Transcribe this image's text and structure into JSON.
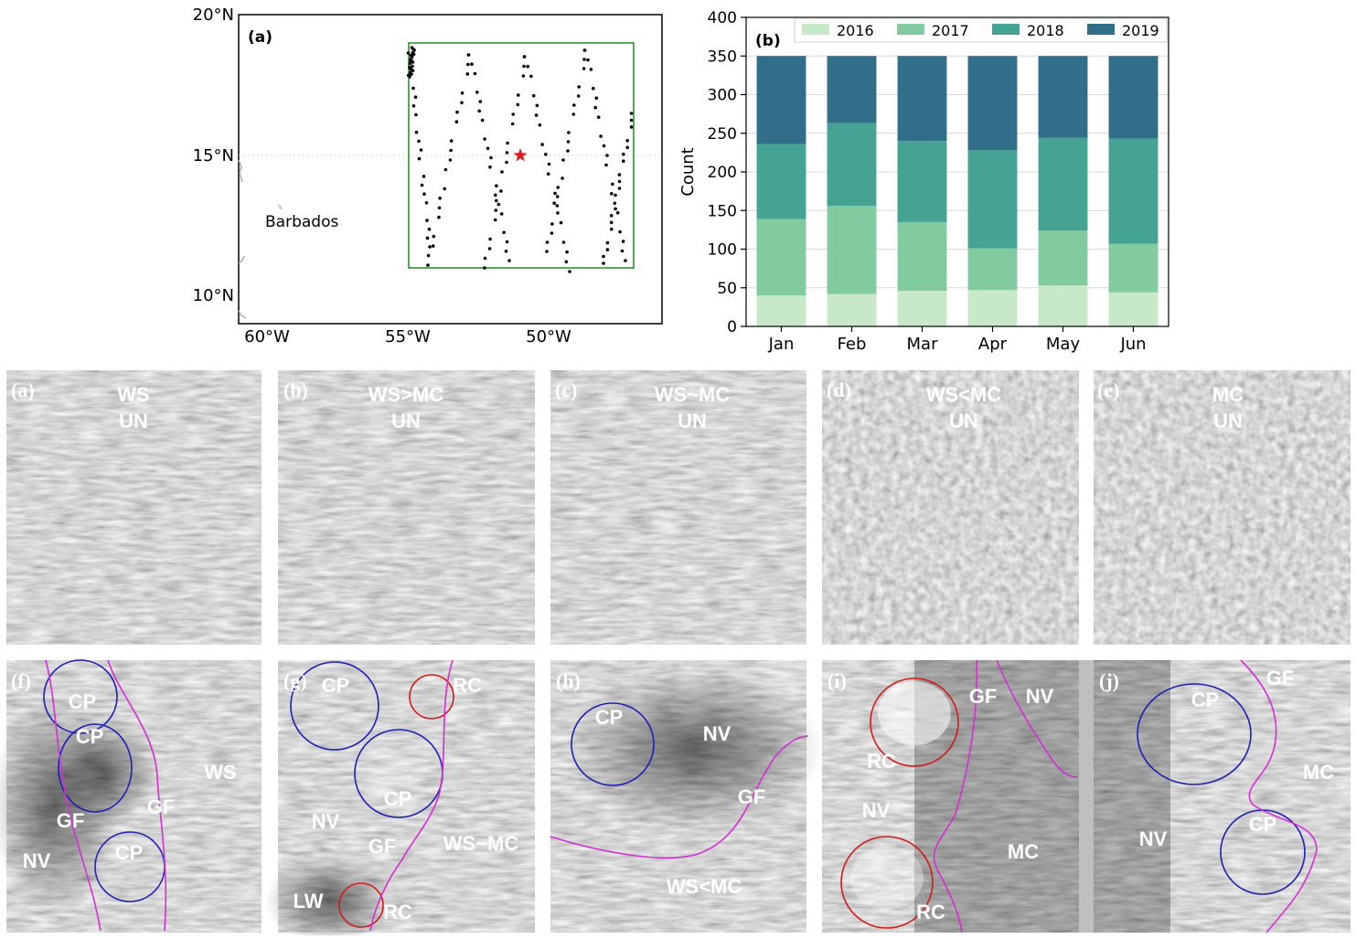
{
  "map": {
    "panel_label": "(a)",
    "lat_labels": [
      "20°N",
      "15°N",
      "10°N"
    ],
    "lon_labels": [
      "60°W",
      "55°W",
      "50°W"
    ],
    "place_label": "Barbados",
    "colors": {
      "box": "#228b22",
      "star": "#e41a1c",
      "points": "#000000"
    }
  },
  "chart_data": {
    "type": "bar",
    "stacked": true,
    "panel_label": "(b)",
    "title": "",
    "xlabel": "",
    "ylabel": "Count",
    "categories": [
      "Jan",
      "Feb",
      "Mar",
      "Apr",
      "May",
      "Jun"
    ],
    "ylim": [
      0,
      400
    ],
    "yticks": [
      0,
      50,
      100,
      150,
      200,
      250,
      300,
      350,
      400
    ],
    "legend_position": "top",
    "series": [
      {
        "name": "2016",
        "color": "#c7e9c8",
        "values": [
          40,
          42,
          46,
          47,
          53,
          44
        ]
      },
      {
        "name": "2017",
        "color": "#82ca9f",
        "values": [
          99,
          114,
          89,
          54,
          71,
          63
        ]
      },
      {
        "name": "2018",
        "color": "#45a394",
        "values": [
          97,
          107,
          105,
          127,
          120,
          136
        ]
      },
      {
        "name": "2019",
        "color": "#306e8a",
        "values": [
          114,
          87,
          110,
          122,
          106,
          107
        ]
      }
    ]
  },
  "sar_panels": [
    {
      "letter": "(a)",
      "labels": [
        "WS",
        "UN"
      ]
    },
    {
      "letter": "(b)",
      "labels": [
        "WS>MC",
        "UN"
      ]
    },
    {
      "letter": "(c)",
      "labels": [
        "WS~MC",
        "UN"
      ]
    },
    {
      "letter": "(d)",
      "labels": [
        "WS<MC",
        "UN"
      ]
    },
    {
      "letter": "(e)",
      "labels": [
        "MC",
        "UN"
      ]
    },
    {
      "letter": "(f)",
      "labels": [
        "CP",
        "CP",
        "GF",
        "GF",
        "WS",
        "NV",
        "CP"
      ]
    },
    {
      "letter": "(g)",
      "labels": [
        "CP",
        "RC",
        "CP",
        "NV",
        "GF",
        "WS~MC",
        "LW",
        "RC"
      ]
    },
    {
      "letter": "(h)",
      "labels": [
        "CP",
        "NV",
        "GF",
        "WS<MC"
      ]
    },
    {
      "letter": "(i)",
      "labels": [
        "GF",
        "NV",
        "RC",
        "NV",
        "MC",
        "RC"
      ]
    },
    {
      "letter": "(j)",
      "labels": [
        "GF",
        "CP",
        "MC",
        "NV",
        "CP"
      ]
    }
  ],
  "annotation_colors": {
    "cold_pool_circle": "#1f1fb4",
    "rain_cell_circle": "#d11a1a",
    "gust_front_line": "#d42ed4"
  }
}
